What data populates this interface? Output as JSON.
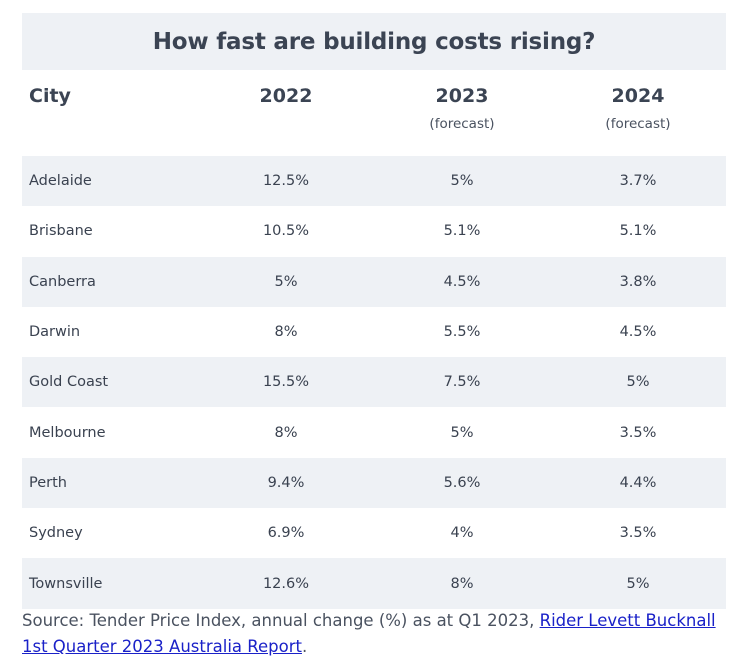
{
  "title": "How fast are building costs rising?",
  "table": {
    "headers": {
      "city": "City",
      "y2022": "2022",
      "y2023": "2023",
      "y2024": "2024",
      "y2023_sub": "(forecast)",
      "y2024_sub": "(forecast)"
    },
    "rows": [
      {
        "city": "Adelaide",
        "y2022": "12.5%",
        "y2023": "5%",
        "y2024": "3.7%"
      },
      {
        "city": "Brisbane",
        "y2022": "10.5%",
        "y2023": "5.1%",
        "y2024": "5.1%"
      },
      {
        "city": "Canberra",
        "y2022": "5%",
        "y2023": "4.5%",
        "y2024": "3.8%"
      },
      {
        "city": "Darwin",
        "y2022": "8%",
        "y2023": "5.5%",
        "y2024": "4.5%"
      },
      {
        "city": "Gold Coast",
        "y2022": "15.5%",
        "y2023": "7.5%",
        "y2024": "5%"
      },
      {
        "city": "Melbourne",
        "y2022": "8%",
        "y2023": "5%",
        "y2024": "3.5%"
      },
      {
        "city": "Perth",
        "y2022": "9.4%",
        "y2023": "5.6%",
        "y2024": "4.4%"
      },
      {
        "city": "Sydney",
        "y2022": "6.9%",
        "y2023": "4%",
        "y2024": "3.5%"
      },
      {
        "city": "Townsville",
        "y2022": "12.6%",
        "y2023": "8%",
        "y2024": "5%"
      }
    ]
  },
  "source": {
    "prefix": "Source: Tender Price Index, annual change (%) as at Q1 2023, ",
    "link_text": "Rider Levett Bucknall 1st Quarter 2023 Australia Report",
    "suffix": "."
  },
  "colors": {
    "shaded_row": "#eef1f5",
    "text": "#3a4250",
    "link": "#1a21c8"
  }
}
